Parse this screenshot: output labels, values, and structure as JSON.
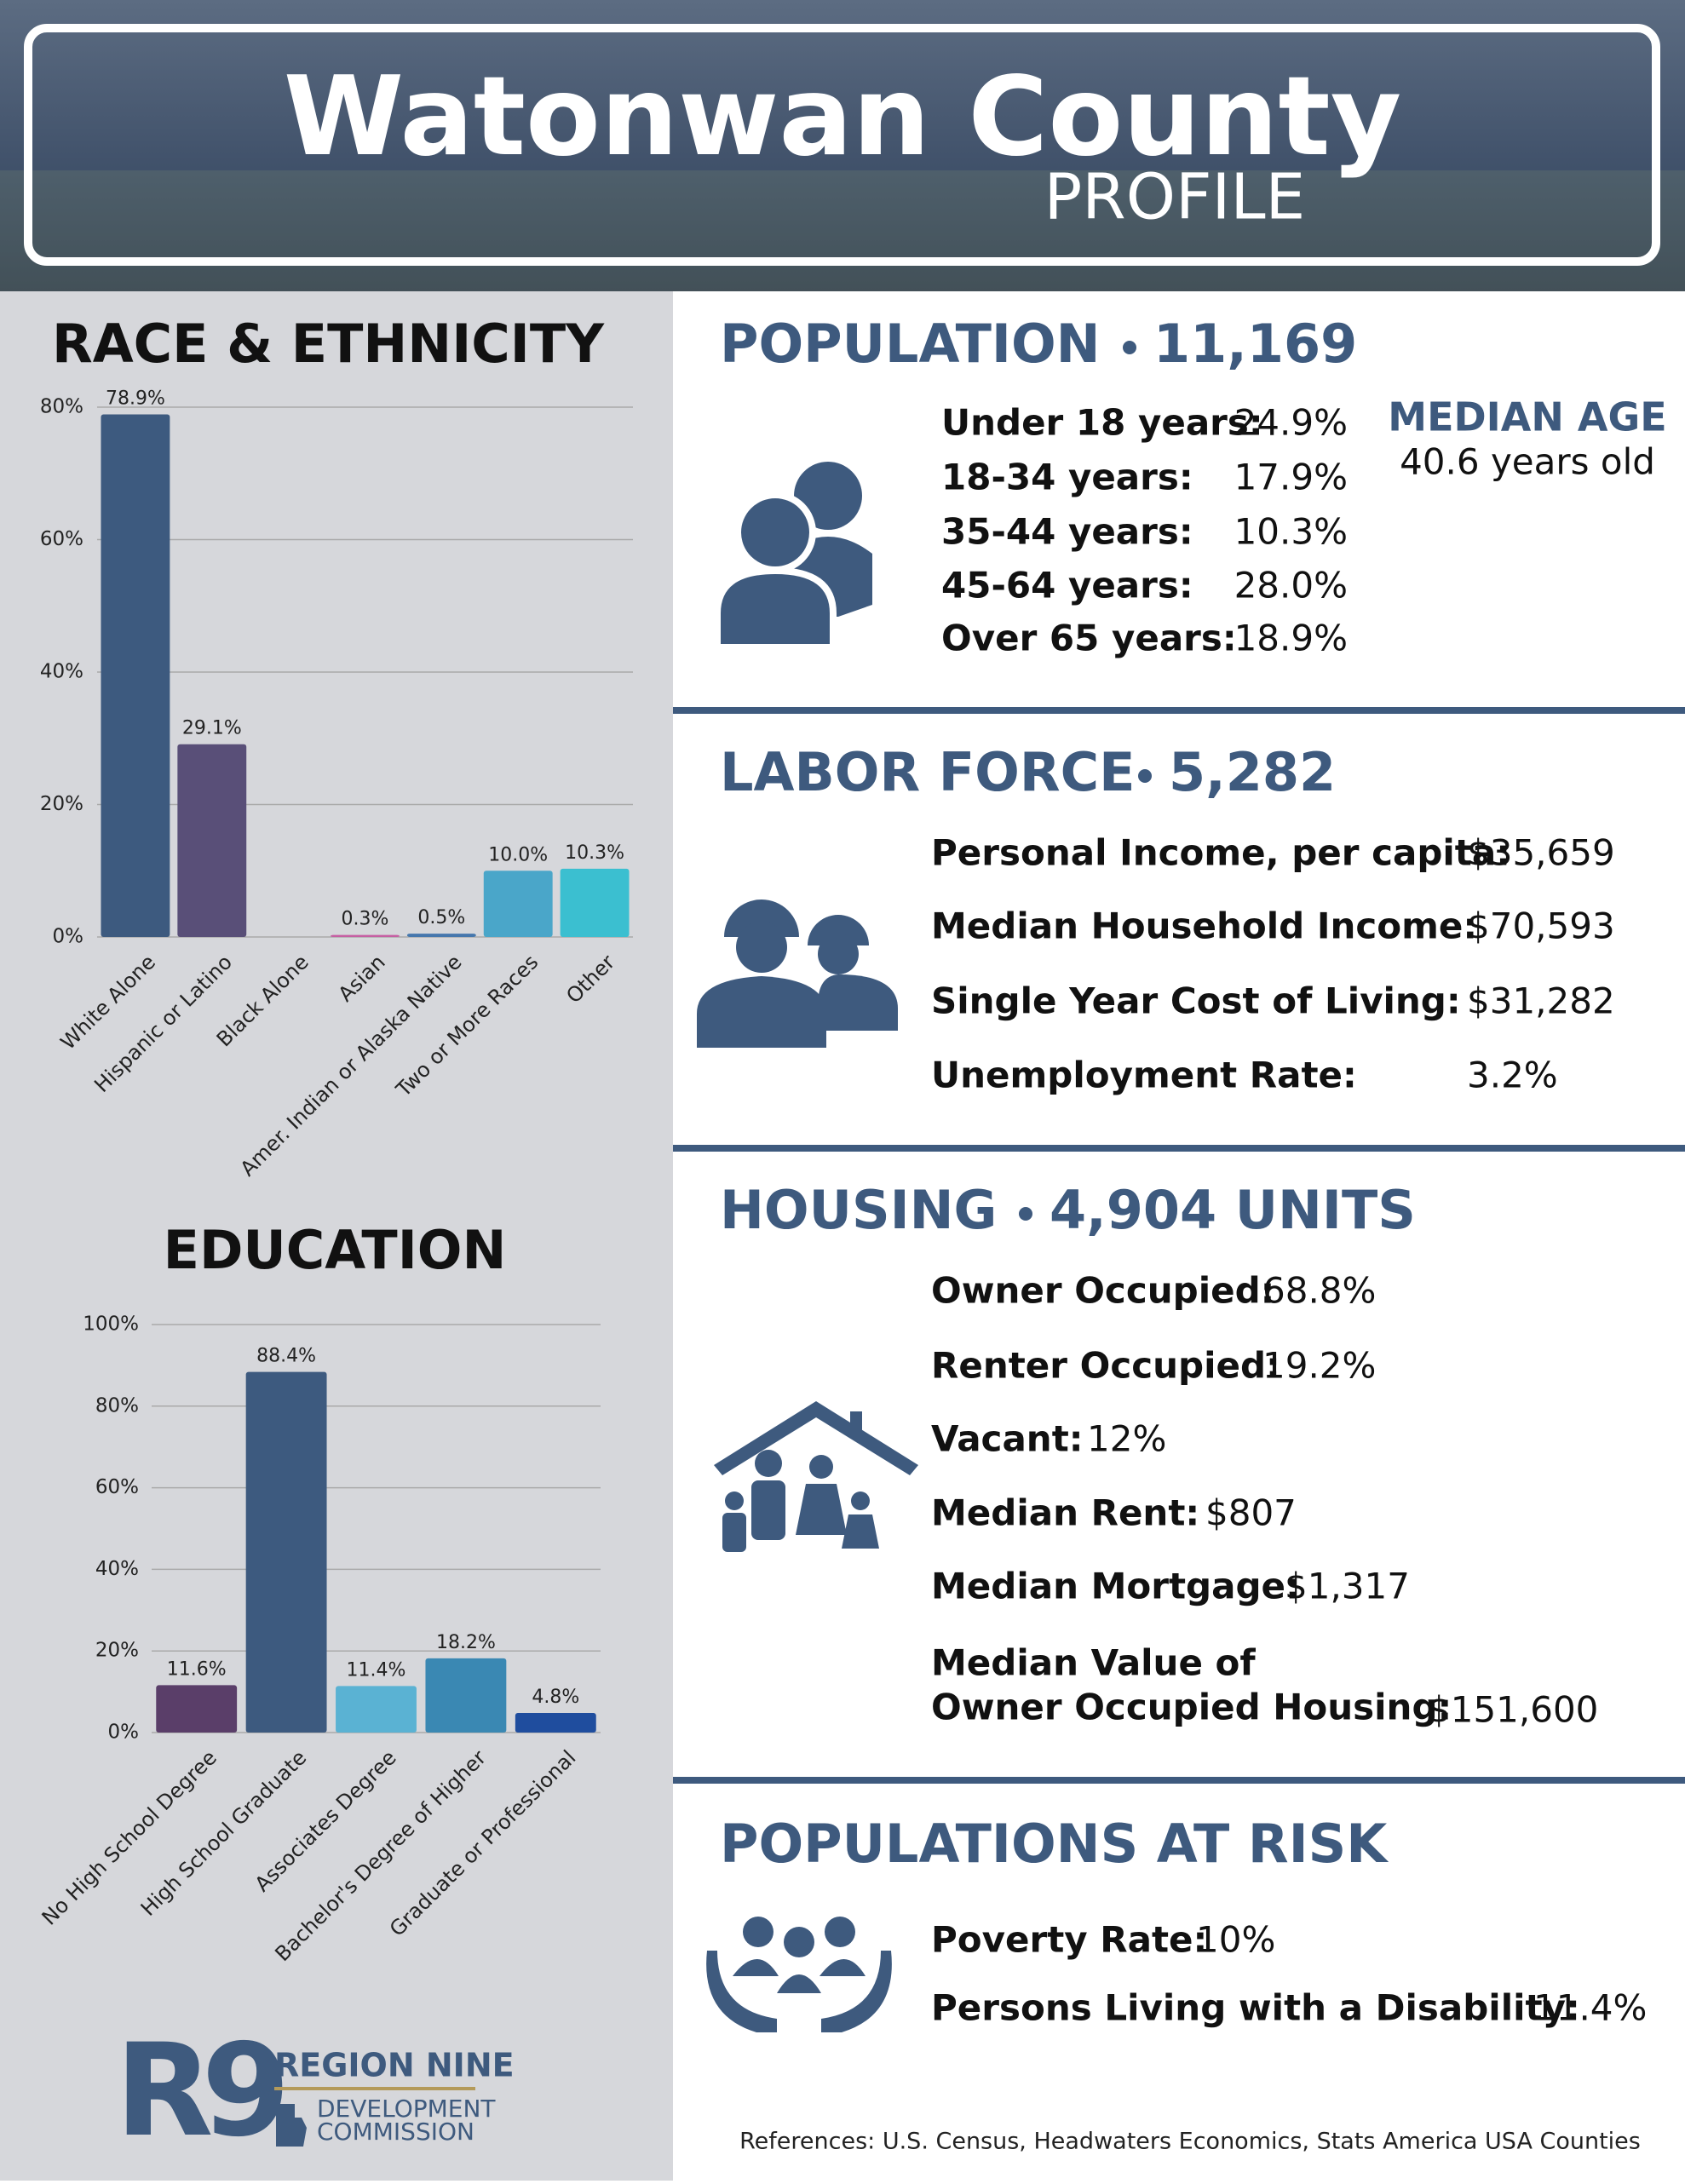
{
  "header": {
    "title": "Watonwan County",
    "subtitle": "PROFILE"
  },
  "chart_data": [
    {
      "type": "bar",
      "title": "RACE & ETHNICITY",
      "categories": [
        "White Alone",
        "Hispanic or Latino",
        "Black Alone",
        "Asian",
        "Amer. Indian or Alaska Native",
        "Two or More Races",
        "Other"
      ],
      "values": [
        78.9,
        29.1,
        0,
        0.3,
        0.5,
        10.0,
        10.3
      ],
      "value_labels": [
        "78.9%",
        "29.1%",
        null,
        "0.3%",
        "0.5%",
        "10.0%",
        "10.3%"
      ],
      "colors": [
        "#3d5a7f",
        "#594f78",
        "#2d2d3a",
        "#c65fa3",
        "#4577ad",
        "#4aa6c9",
        "#3bbfd0"
      ],
      "ylim": [
        0,
        80
      ],
      "yticks": [
        {
          "value": 0,
          "label": "0%"
        },
        {
          "value": 20,
          "label": "20%"
        },
        {
          "value": 40,
          "label": "40%"
        },
        {
          "value": 60,
          "label": "60%"
        },
        {
          "value": 80,
          "label": "80%"
        }
      ],
      "grid": true
    },
    {
      "type": "bar",
      "title": "EDUCATION",
      "categories": [
        "No High School Degree",
        "High School Graduate",
        "Associates Degree",
        "Bachelor's Degree of Higher",
        "Graduate or Professional"
      ],
      "values": [
        11.6,
        88.4,
        11.4,
        18.2,
        4.8
      ],
      "value_labels": [
        "11.6%",
        "88.4%",
        "11.4%",
        "18.2%",
        "4.8%"
      ],
      "colors": [
        "#5a3e69",
        "#3d5a7f",
        "#5ab2d3",
        "#3a88b3",
        "#1f4d9e"
      ],
      "ylim": [
        0,
        100
      ],
      "yticks": [
        {
          "value": 0,
          "label": "0%"
        },
        {
          "value": 20,
          "label": "20%"
        },
        {
          "value": 40,
          "label": "40%"
        },
        {
          "value": 60,
          "label": "60%"
        },
        {
          "value": 80,
          "label": "80%"
        },
        {
          "value": 100,
          "label": "100%"
        }
      ],
      "grid": true
    }
  ],
  "population": {
    "heading": "POPULATION",
    "total": "11,169",
    "rows": [
      [
        "Under 18 years:",
        "24.9%"
      ],
      [
        "18-34 years:",
        "17.9%"
      ],
      [
        "35-44 years:",
        "10.3%"
      ],
      [
        "45-64 years:",
        "28.0%"
      ],
      [
        "Over 65 years:",
        "18.9%"
      ]
    ],
    "median_age": {
      "label": "MEDIAN AGE",
      "value": "40.6 years old"
    }
  },
  "labor_force": {
    "heading": "LABOR FORCE",
    "total": "5,282",
    "rows": [
      [
        "Personal Income, per capita:",
        "$35,659"
      ],
      [
        "Median Household Income:",
        "$70,593"
      ],
      [
        "Single Year Cost of Living:",
        "$31,282"
      ],
      [
        "Unemployment Rate:",
        "3.2%"
      ]
    ]
  },
  "housing": {
    "heading": "HOUSING",
    "total": "4,904 UNITS",
    "rows": [
      [
        "Owner Occupied:",
        "68.8%"
      ],
      [
        "Renter Occupied:",
        "19.2%"
      ],
      [
        "Vacant:",
        "12%"
      ],
      [
        "Median Rent:",
        "$807"
      ],
      [
        "Median Mortgage:",
        "$1,317"
      ]
    ],
    "median_value": {
      "label_lines": [
        "Median Value of",
        "Owner Occupied Housing:"
      ],
      "value": "$151,600"
    }
  },
  "at_risk": {
    "heading": "POPULATIONS AT RISK",
    "rows": [
      [
        "Poverty Rate:",
        "10%"
      ],
      [
        "Persons Living with a Disability:",
        "11.4%"
      ]
    ]
  },
  "logo": {
    "mark": "R9",
    "name": "REGION NINE",
    "lines": [
      "DEVELOPMENT",
      "COMMISSION"
    ]
  },
  "references": "References: U.S. Census, Headwaters Economics, Stats America USA Counties"
}
